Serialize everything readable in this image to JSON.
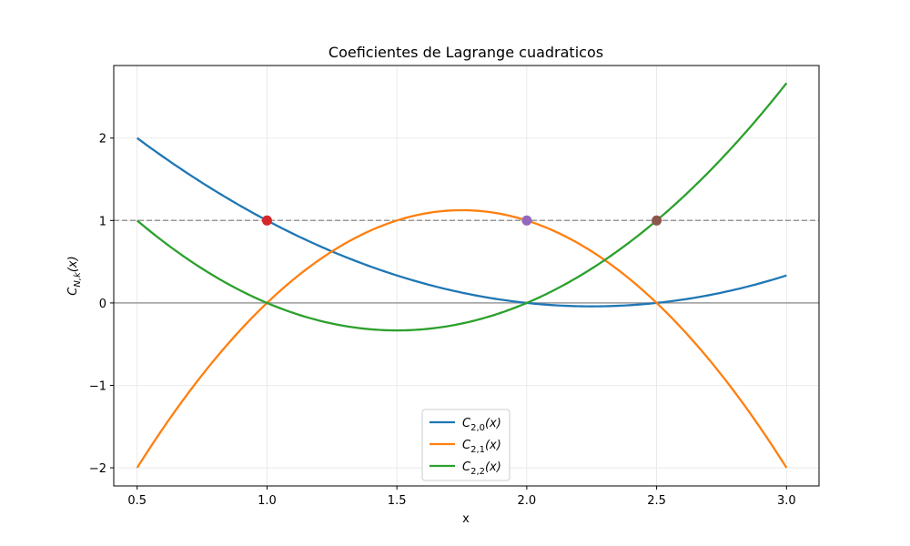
{
  "chart_data": {
    "type": "line",
    "title": "Coeficientes de Lagrange cuadraticos",
    "xlabel": "x",
    "ylabel": "C_{N,k}(x)",
    "ylabel_parts": {
      "main": "C",
      "sub": "N,k",
      "tail": "(x)"
    },
    "xlim": [
      0.41,
      3.125
    ],
    "ylim": [
      -2.22,
      2.88
    ],
    "xticks": [
      0.5,
      1.0,
      1.5,
      2.0,
      2.5,
      3.0
    ],
    "xtick_labels": [
      "0.5",
      "1.0",
      "1.5",
      "2.0",
      "2.5",
      "3.0"
    ],
    "yticks": [
      -2,
      -1,
      0,
      1,
      2
    ],
    "ytick_labels": [
      "−2",
      "−1",
      "0",
      "1",
      "2"
    ],
    "grid": true,
    "legend_position": "bottom-center",
    "nodes": [
      1.0,
      2.0,
      2.5
    ],
    "domain": [
      0.5,
      3.0
    ],
    "series": [
      {
        "name": "C_{2,0}(x)",
        "main": "C",
        "sub": "2,0",
        "tail": "(x)",
        "node_index": 0,
        "color": "#1f77b4",
        "x": [
          0.5,
          1.0,
          1.5,
          2.0,
          2.25,
          2.5,
          3.0
        ],
        "y": [
          2.0,
          1.0,
          0.3333,
          0.0,
          -0.0417,
          0.0,
          0.3333
        ]
      },
      {
        "name": "C_{2,1}(x)",
        "main": "C",
        "sub": "2,1",
        "tail": "(x)",
        "node_index": 1,
        "color": "#ff7f0e",
        "x": [
          0.5,
          1.0,
          1.5,
          1.75,
          2.0,
          2.5,
          3.0
        ],
        "y": [
          -2.0,
          0.0,
          1.0,
          1.125,
          1.0,
          0.0,
          -2.0
        ]
      },
      {
        "name": "C_{2,2}(x)",
        "main": "C",
        "sub": "2,2",
        "tail": "(x)",
        "node_index": 2,
        "color": "#2ca02c",
        "x": [
          0.5,
          1.0,
          1.5,
          2.0,
          2.5,
          3.0
        ],
        "y": [
          1.0,
          0.0,
          -0.3333,
          0.0,
          1.0,
          2.6667
        ]
      }
    ],
    "reference_lines": [
      {
        "y": 1,
        "style": "dashed",
        "color": "#999999"
      },
      {
        "y": 0,
        "style": "solid",
        "color": "#999999"
      }
    ],
    "markers": [
      {
        "x": 1.0,
        "y": 1.0,
        "color": "#d62728"
      },
      {
        "x": 2.0,
        "y": 1.0,
        "color": "#9467bd"
      },
      {
        "x": 2.5,
        "y": 1.0,
        "color": "#8c564b"
      }
    ]
  }
}
